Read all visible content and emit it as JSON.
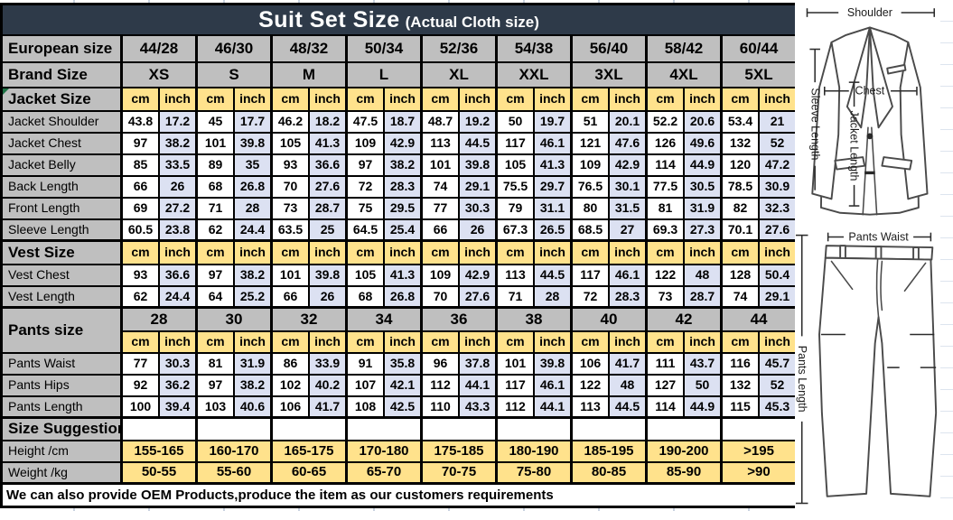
{
  "title": {
    "main": "Suit Set Size",
    "sub": "(Actual Cloth size)"
  },
  "colors": {
    "title_bg": "#2e3a49",
    "header_gray": "#bfbfbf",
    "unit_yellow": "#ffe28c",
    "inch_lavender": "#dce1f2",
    "cell_white": "#ffffff",
    "border": "#000000"
  },
  "table": {
    "header_rows": [
      {
        "id": "european-size",
        "label": "European size",
        "values": [
          "44/28",
          "46/30",
          "48/32",
          "50/34",
          "52/36",
          "54/38",
          "56/40",
          "58/42",
          "60/44"
        ]
      },
      {
        "id": "brand-size",
        "label": "Brand Size",
        "values": [
          "XS",
          "S",
          "M",
          "L",
          "XL",
          "XXL",
          "3XL",
          "4XL",
          "5XL"
        ]
      }
    ],
    "units": [
      "cm",
      "inch"
    ],
    "sections": [
      {
        "id": "jacket",
        "label": "Jacket Size",
        "rows": [
          {
            "label": "Jacket Shoulder",
            "values": [
              "43.8",
              "17.2",
              "45",
              "17.7",
              "46.2",
              "18.2",
              "47.5",
              "18.7",
              "48.7",
              "19.2",
              "50",
              "19.7",
              "51",
              "20.1",
              "52.2",
              "20.6",
              "53.4",
              "21"
            ]
          },
          {
            "label": "Jacket Chest",
            "values": [
              "97",
              "38.2",
              "101",
              "39.8",
              "105",
              "41.3",
              "109",
              "42.9",
              "113",
              "44.5",
              "117",
              "46.1",
              "121",
              "47.6",
              "126",
              "49.6",
              "132",
              "52"
            ]
          },
          {
            "label": "Jacket Belly",
            "values": [
              "85",
              "33.5",
              "89",
              "35",
              "93",
              "36.6",
              "97",
              "38.2",
              "101",
              "39.8",
              "105",
              "41.3",
              "109",
              "42.9",
              "114",
              "44.9",
              "120",
              "47.2"
            ]
          },
          {
            "label": "Back Length",
            "values": [
              "66",
              "26",
              "68",
              "26.8",
              "70",
              "27.6",
              "72",
              "28.3",
              "74",
              "29.1",
              "75.5",
              "29.7",
              "76.5",
              "30.1",
              "77.5",
              "30.5",
              "78.5",
              "30.9"
            ]
          },
          {
            "label": "Front Length",
            "values": [
              "69",
              "27.2",
              "71",
              "28",
              "73",
              "28.7",
              "75",
              "29.5",
              "77",
              "30.3",
              "79",
              "31.1",
              "80",
              "31.5",
              "81",
              "31.9",
              "82",
              "32.3"
            ]
          },
          {
            "label": "Sleeve Length",
            "values": [
              "60.5",
              "23.8",
              "62",
              "24.4",
              "63.5",
              "25",
              "64.5",
              "25.4",
              "66",
              "26",
              "67.3",
              "26.5",
              "68.5",
              "27",
              "69.3",
              "27.3",
              "70.1",
              "27.6"
            ]
          }
        ]
      },
      {
        "id": "vest",
        "label": "Vest Size",
        "rows": [
          {
            "label": "Vest Chest",
            "values": [
              "93",
              "36.6",
              "97",
              "38.2",
              "101",
              "39.8",
              "105",
              "41.3",
              "109",
              "42.9",
              "113",
              "44.5",
              "117",
              "46.1",
              "122",
              "48",
              "128",
              "50.4"
            ]
          },
          {
            "label": "Vest Length",
            "values": [
              "62",
              "24.4",
              "64",
              "25.2",
              "66",
              "26",
              "68",
              "26.8",
              "70",
              "27.6",
              "71",
              "28",
              "72",
              "28.3",
              "73",
              "28.7",
              "74",
              "29.1"
            ]
          }
        ]
      },
      {
        "id": "pants",
        "label": "Pants size",
        "sizes": [
          "28",
          "30",
          "32",
          "34",
          "36",
          "38",
          "40",
          "42",
          "44"
        ],
        "rows": [
          {
            "label": "Pants Waist",
            "values": [
              "77",
              "30.3",
              "81",
              "31.9",
              "86",
              "33.9",
              "91",
              "35.8",
              "96",
              "37.8",
              "101",
              "39.8",
              "106",
              "41.7",
              "111",
              "43.7",
              "116",
              "45.7"
            ]
          },
          {
            "label": "Pants Hips",
            "values": [
              "92",
              "36.2",
              "97",
              "38.2",
              "102",
              "40.2",
              "107",
              "42.1",
              "112",
              "44.1",
              "117",
              "46.1",
              "122",
              "48",
              "127",
              "50",
              "132",
              "52"
            ]
          },
          {
            "label": "Pants Length",
            "values": [
              "100",
              "39.4",
              "103",
              "40.6",
              "106",
              "41.7",
              "108",
              "42.5",
              "110",
              "43.3",
              "112",
              "44.1",
              "113",
              "44.5",
              "114",
              "44.9",
              "115",
              "45.3"
            ]
          }
        ]
      },
      {
        "id": "suggestion",
        "label": "Size Suggestion",
        "rows": [
          {
            "label": "Height /cm",
            "merged": true,
            "values": [
              "155-165",
              "160-170",
              "165-175",
              "170-180",
              "175-185",
              "180-190",
              "185-195",
              "190-200",
              ">195"
            ]
          },
          {
            "label": "Weight /kg",
            "merged": true,
            "values": [
              "50-55",
              "55-60",
              "60-65",
              "65-70",
              "70-75",
              "75-80",
              "80-85",
              "85-90",
              ">90"
            ]
          }
        ]
      }
    ],
    "footer_note": "We can also provide OEM Products,produce the item as our customers requirements"
  },
  "diagram": {
    "shoulder": "Shoulder",
    "sleeve_length": "Sleeve Length",
    "jacket_length": "Jacket Length",
    "chest": "Chest",
    "pants_waist": "Pants Waist",
    "pants_length": "Pants Length"
  }
}
